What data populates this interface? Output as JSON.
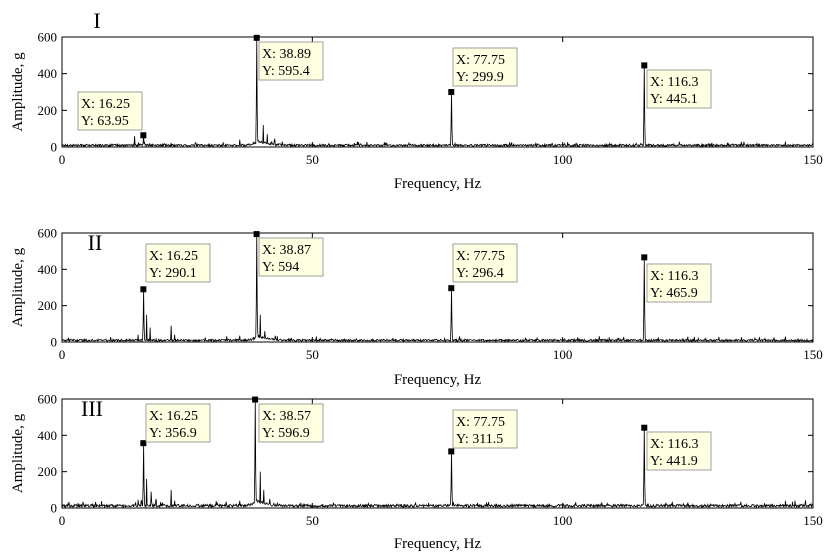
{
  "chart_data": [
    {
      "type": "line",
      "panel_label": "I",
      "xlabel": "Frequency, Hz",
      "ylabel": "Amplitude, g",
      "xlim": [
        0,
        150
      ],
      "ylim": [
        0,
        600
      ],
      "xticks": [
        0,
        50,
        100,
        150
      ],
      "yticks": [
        0,
        200,
        400,
        600
      ],
      "grid": false,
      "baseline": 15,
      "side_peaks": [
        {
          "x": 14.5,
          "y": 60
        },
        {
          "x": 15.3,
          "y": 25
        },
        {
          "x": 17.5,
          "y": 20
        },
        {
          "x": 21.8,
          "y": 22
        },
        {
          "x": 35.5,
          "y": 40
        },
        {
          "x": 40.2,
          "y": 120
        },
        {
          "x": 41.0,
          "y": 70
        },
        {
          "x": 42.5,
          "y": 45
        },
        {
          "x": 44.0,
          "y": 30
        },
        {
          "x": 78.5,
          "y": 20
        },
        {
          "x": 117.2,
          "y": 18
        },
        {
          "x": 144.5,
          "y": 30
        }
      ],
      "peaks": [
        {
          "x": 16.25,
          "y": 63.95,
          "label_x": "X: 16.25",
          "label_y": "Y: 63.95"
        },
        {
          "x": 38.89,
          "y": 595.4,
          "label_x": "X: 38.89",
          "label_y": "Y: 595.4"
        },
        {
          "x": 77.75,
          "y": 299.9,
          "label_x": "X: 77.75",
          "label_y": "Y: 299.9"
        },
        {
          "x": 116.3,
          "y": 445.1,
          "label_x": "X: 116.3",
          "label_y": "Y: 445.1"
        }
      ]
    },
    {
      "type": "line",
      "panel_label": "II",
      "xlabel": "Frequency, Hz",
      "ylabel": "Amplitude, g",
      "xlim": [
        0,
        150
      ],
      "ylim": [
        0,
        600
      ],
      "xticks": [
        0,
        50,
        100,
        150
      ],
      "yticks": [
        0,
        200,
        400,
        600
      ],
      "grid": false,
      "baseline": 15,
      "side_peaks": [
        {
          "x": 15.2,
          "y": 40
        },
        {
          "x": 16.9,
          "y": 150
        },
        {
          "x": 17.6,
          "y": 80
        },
        {
          "x": 21.8,
          "y": 90
        },
        {
          "x": 22.5,
          "y": 40
        },
        {
          "x": 35.5,
          "y": 35
        },
        {
          "x": 39.6,
          "y": 150
        },
        {
          "x": 40.5,
          "y": 60
        },
        {
          "x": 144.5,
          "y": 30
        }
      ],
      "peaks": [
        {
          "x": 16.25,
          "y": 290.1,
          "label_x": "X: 16.25",
          "label_y": "Y: 290.1"
        },
        {
          "x": 38.87,
          "y": 594,
          "label_x": "X: 38.87",
          "label_y": "Y: 594"
        },
        {
          "x": 77.75,
          "y": 296.4,
          "label_x": "X: 77.75",
          "label_y": "Y: 296.4"
        },
        {
          "x": 116.3,
          "y": 465.9,
          "label_x": "X: 116.3",
          "label_y": "Y: 465.9"
        }
      ]
    },
    {
      "type": "line",
      "panel_label": "III",
      "xlabel": "Frequency, Hz",
      "ylabel": "Amplitude, g",
      "xlim": [
        0,
        150
      ],
      "ylim": [
        0,
        600
      ],
      "xticks": [
        0,
        50,
        100,
        150
      ],
      "yticks": [
        0,
        200,
        400,
        600
      ],
      "grid": false,
      "baseline": 20,
      "side_peaks": [
        {
          "x": 15.2,
          "y": 45
        },
        {
          "x": 16.9,
          "y": 160
        },
        {
          "x": 17.8,
          "y": 90
        },
        {
          "x": 18.8,
          "y": 50
        },
        {
          "x": 21.8,
          "y": 100
        },
        {
          "x": 22.5,
          "y": 40
        },
        {
          "x": 35.5,
          "y": 40
        },
        {
          "x": 39.6,
          "y": 200
        },
        {
          "x": 40.3,
          "y": 100
        },
        {
          "x": 41.5,
          "y": 50
        },
        {
          "x": 144.5,
          "y": 40
        }
      ],
      "peaks": [
        {
          "x": 16.25,
          "y": 356.9,
          "label_x": "X: 16.25",
          "label_y": "Y: 356.9"
        },
        {
          "x": 38.57,
          "y": 596.9,
          "label_x": "X: 38.57",
          "label_y": "Y: 596.9"
        },
        {
          "x": 77.75,
          "y": 311.5,
          "label_x": "X: 77.75",
          "label_y": "Y: 311.5"
        },
        {
          "x": 116.3,
          "y": 441.9,
          "label_x": "X: 116.3",
          "label_y": "Y: 441.9"
        }
      ]
    }
  ],
  "style": {
    "line_color": "#000000",
    "datatip_fill": "#ffffe1",
    "datatip_border": "#888888"
  }
}
